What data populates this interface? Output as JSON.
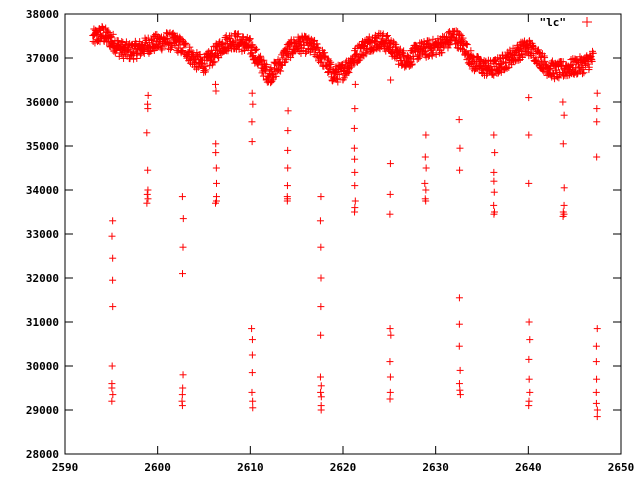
{
  "chart_data": {
    "type": "scatter",
    "title": "",
    "xlabel": "",
    "ylabel": "",
    "xlim": [
      2590,
      2650
    ],
    "ylim": [
      28000,
      38000
    ],
    "x_ticks": [
      2590,
      2600,
      2610,
      2620,
      2630,
      2640,
      2650
    ],
    "y_ticks": [
      28000,
      29000,
      30000,
      31000,
      32000,
      33000,
      34000,
      35000,
      36000,
      37000,
      38000
    ],
    "grid": false,
    "legend_position": "top-right",
    "marker": "+",
    "color": "#ff0000",
    "series": [
      {
        "name": "\"lc\"",
        "baseline": {
          "x": [
            2593,
            2594,
            2595,
            2596,
            2597,
            2598,
            2599,
            2600,
            2601,
            2602,
            2603,
            2604,
            2605,
            2606,
            2607,
            2608,
            2609,
            2610,
            2611,
            2612,
            2613,
            2614,
            2615,
            2616,
            2617,
            2618,
            2619,
            2620,
            2621,
            2622,
            2623,
            2624,
            2625,
            2626,
            2627,
            2628,
            2629,
            2630,
            2631,
            2632,
            2633,
            2634,
            2635,
            2636,
            2637,
            2638,
            2639,
            2640,
            2641,
            2642,
            2643,
            2644,
            2645,
            2646,
            2647
          ],
          "y": [
            37450,
            37550,
            37400,
            37200,
            37150,
            37200,
            37300,
            37350,
            37400,
            37350,
            37200,
            36950,
            36850,
            37050,
            37300,
            37400,
            37350,
            37250,
            36900,
            36600,
            36800,
            37150,
            37300,
            37300,
            37200,
            36950,
            36600,
            36700,
            36950,
            37200,
            37350,
            37400,
            37300,
            37050,
            36950,
            37150,
            37200,
            37250,
            37350,
            37500,
            37300,
            36900,
            36800,
            36750,
            36850,
            37000,
            37150,
            37250,
            37050,
            36800,
            36700,
            36750,
            36800,
            36850,
            37000
          ]
        },
        "dips": [
          {
            "x": 2595.1,
            "y": [
              33300,
              32950,
              32450,
              31950,
              31350,
              30000,
              29600,
              29500,
              29350,
              29200
            ]
          },
          {
            "x": 2598.9,
            "y": [
              36150,
              35950,
              35850,
              35300,
              34450,
              34000,
              33900,
              33800,
              33700
            ]
          },
          {
            "x": 2602.7,
            "y": [
              33850,
              33350,
              32700,
              32100,
              29800,
              29500,
              29350,
              29200,
              29100
            ]
          },
          {
            "x": 2606.3,
            "y": [
              36400,
              36250,
              35050,
              34850,
              34500,
              34150,
              33850,
              33750,
              33700
            ]
          },
          {
            "x": 2610.2,
            "y": [
              36200,
              35950,
              35550,
              35100,
              30850,
              30600,
              30250,
              29850,
              29400,
              29200,
              29050
            ]
          },
          {
            "x": 2614.0,
            "y": [
              35800,
              35350,
              34900,
              34500,
              34100,
              33850,
              33800,
              33750
            ]
          },
          {
            "x": 2617.6,
            "y": [
              33850,
              33300,
              32700,
              32000,
              31350,
              30700,
              29750,
              29550,
              29400,
              29300,
              29100,
              29000
            ]
          },
          {
            "x": 2621.3,
            "y": [
              36400,
              35850,
              35400,
              34950,
              34700,
              34400,
              34100,
              33750,
              33600,
              33500
            ]
          },
          {
            "x": 2625.1,
            "y": [
              36500,
              34600,
              33900,
              33450,
              30850,
              30700,
              30100,
              29750,
              29400,
              29250
            ]
          },
          {
            "x": 2628.9,
            "y": [
              35250,
              34750,
              34500,
              34150,
              34000,
              33800,
              33750
            ]
          },
          {
            "x": 2632.6,
            "y": [
              35600,
              34950,
              34450,
              31550,
              30950,
              30450,
              29900,
              29600,
              29450,
              29350
            ]
          },
          {
            "x": 2636.3,
            "y": [
              35250,
              34850,
              34400,
              34200,
              33950,
              33650,
              33500,
              33450
            ]
          },
          {
            "x": 2640.1,
            "y": [
              36100,
              35250,
              34150,
              31000,
              30600,
              30150,
              29700,
              29400,
              29200,
              29100
            ]
          },
          {
            "x": 2643.8,
            "y": [
              36000,
              35700,
              35050,
              34050,
              33650,
              33500,
              33450,
              33400
            ]
          },
          {
            "x": 2647.4,
            "y": [
              36200,
              35850,
              35550,
              34750,
              30850,
              30450,
              30100,
              29700,
              29400,
              29150,
              29000,
              28850
            ]
          }
        ]
      }
    ]
  }
}
